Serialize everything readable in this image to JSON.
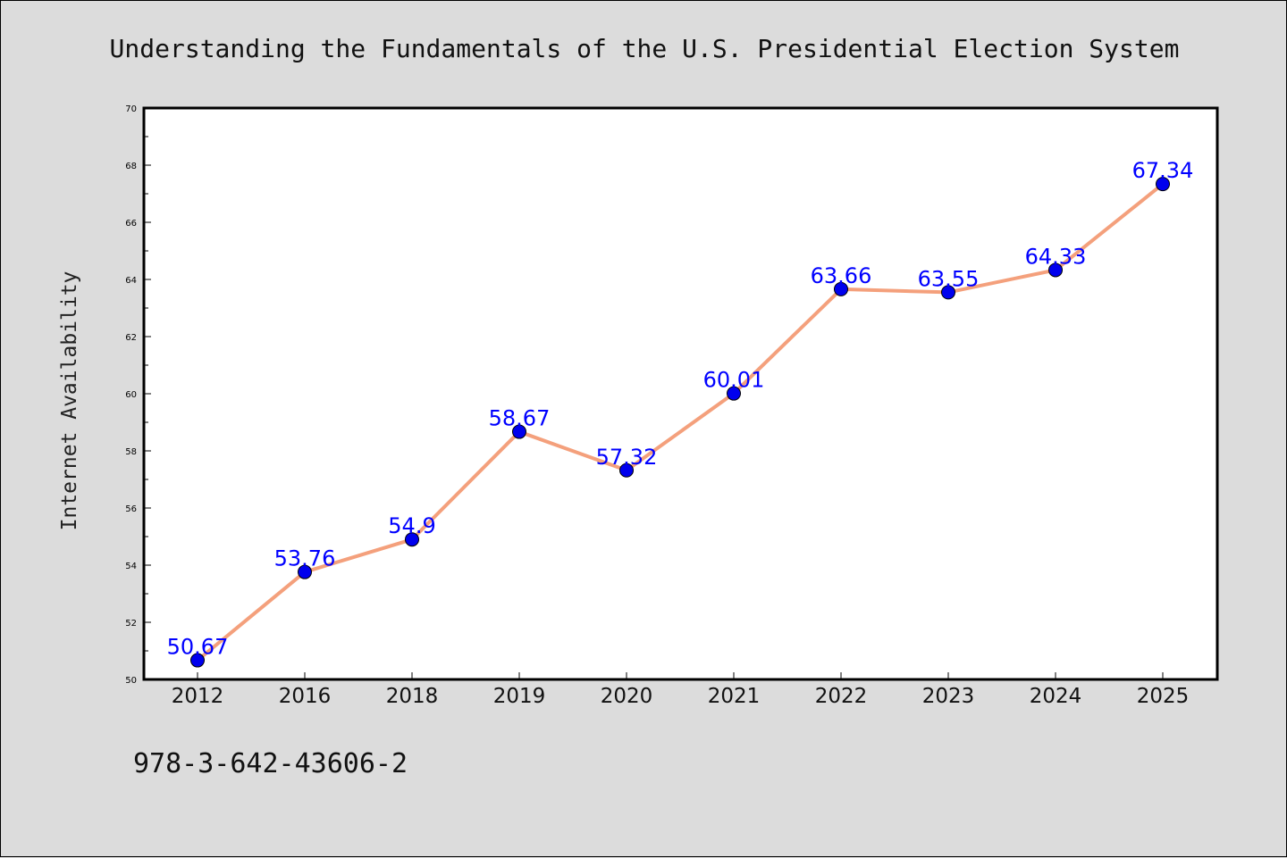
{
  "chart_data": {
    "type": "line",
    "title": "Understanding the Fundamentals of the U.S. Presidential Election System",
    "xlabel": "",
    "ylabel": "Internet Availability",
    "categories": [
      "2012",
      "2016",
      "2018",
      "2019",
      "2020",
      "2021",
      "2022",
      "2023",
      "2024",
      "2025"
    ],
    "series": [
      {
        "values": [
          50.67,
          53.76,
          54.9,
          58.67,
          57.32,
          60.01,
          63.66,
          63.55,
          64.33,
          67.34
        ],
        "data_labels": [
          "50.67",
          "53.76",
          "54.9",
          "58.67",
          "57.32",
          "60.01",
          "63.66",
          "63.55",
          "64.33",
          "67.34"
        ],
        "line_color": "#f4a07c",
        "marker_color": "#0000ee"
      }
    ],
    "ylim": [
      50,
      70
    ],
    "yticks": [
      50,
      52,
      54,
      56,
      58,
      60,
      62,
      64,
      66,
      68,
      70
    ],
    "grid": false,
    "label_color": "#0000ff"
  },
  "footer": {
    "isbn": "978-3-642-43606-2"
  }
}
